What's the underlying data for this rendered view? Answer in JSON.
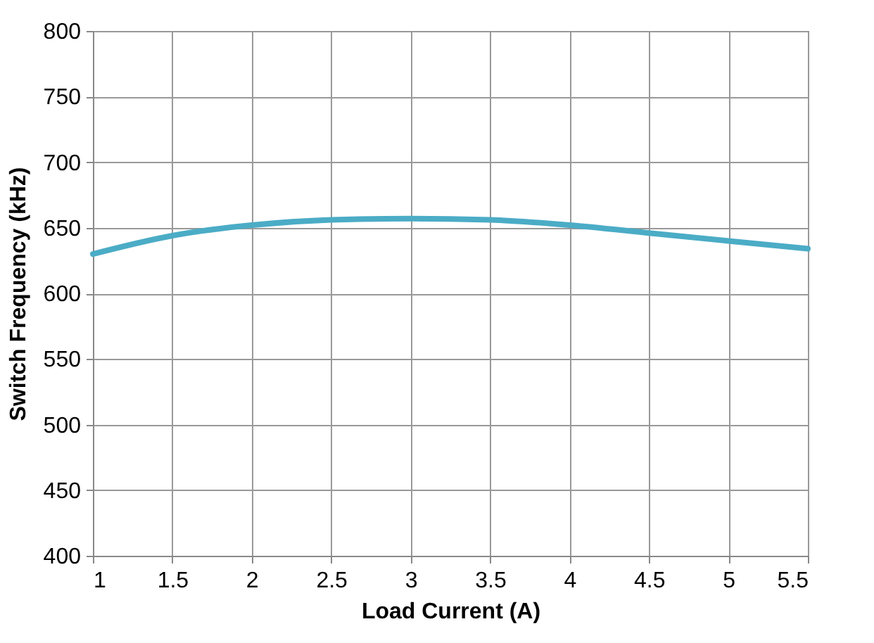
{
  "chart_data": {
    "type": "line",
    "xlabel": "Load Current (A)",
    "ylabel": "Switch Frequency (kHz)",
    "x": [
      1,
      1.5,
      2,
      2.5,
      3,
      3.5,
      4,
      4.5,
      5,
      5.5
    ],
    "series": [
      {
        "color": "#4bacc6",
        "values": [
          630,
          644,
          652,
          656,
          657,
          656,
          652,
          646,
          640,
          634
        ]
      }
    ],
    "xlim": [
      1,
      5.5
    ],
    "xticks": [
      1,
      1.5,
      2,
      2.5,
      3,
      3.5,
      4,
      4.5,
      5,
      5.5
    ],
    "ylim": [
      400,
      800
    ],
    "yticks": [
      400,
      450,
      500,
      550,
      600,
      650,
      700,
      750,
      800
    ],
    "grid": true,
    "marker": "none",
    "line_style": "solid"
  }
}
